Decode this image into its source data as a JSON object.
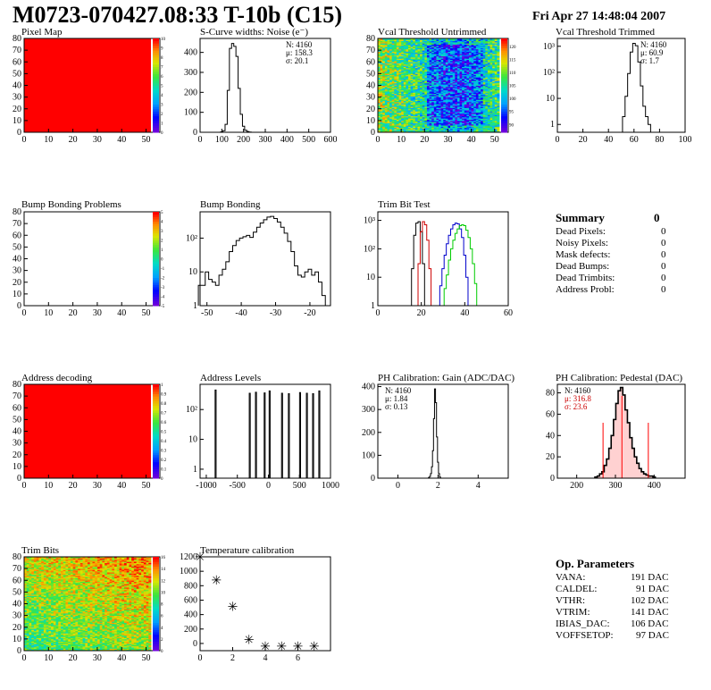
{
  "header": {
    "title": "M0723-070427.08:33 T-10b (C15)",
    "timestamp": "Fri Apr 27 14:48:04 2007"
  },
  "colors": {
    "ok": "#ff0000",
    "hist_line": "#000000",
    "trim_red": "#cc0000",
    "trim_blue": "#0000cc",
    "trim_green": "#00cc00",
    "pedestal_fill": "#ff0000"
  },
  "pads": {
    "pixel_map": {
      "title": "Pixel Map",
      "xticks": [
        "0",
        "10",
        "20",
        "30",
        "40",
        "50"
      ],
      "yticks": [
        "0",
        "10",
        "20",
        "30",
        "40",
        "50",
        "60",
        "70",
        "80"
      ],
      "zticks": [
        "0",
        "1",
        "2",
        "3",
        "4",
        "5",
        "6",
        "7",
        "8",
        "9",
        "10"
      ]
    },
    "scurve": {
      "title": "S-Curve widths: Noise (e⁻)",
      "stats": [
        "N: 4160",
        "μ: 158.3",
        "σ: 20.1"
      ],
      "xticks": [
        "0",
        "100",
        "200",
        "300",
        "400",
        "500",
        "600"
      ],
      "yticks": [
        "0",
        "100",
        "200",
        "300",
        "400"
      ]
    },
    "vcal_untrimmed": {
      "title": "Vcal Threshold Untrimmed",
      "xticks": [
        "0",
        "10",
        "20",
        "30",
        "40",
        "50"
      ],
      "yticks": [
        "0",
        "10",
        "20",
        "30",
        "40",
        "50",
        "60",
        "70",
        "80"
      ],
      "zticks": [
        "90",
        "95",
        "100",
        "105",
        "110",
        "115",
        "120"
      ]
    },
    "vcal_trimmed": {
      "title": "Vcal Threshold Trimmed",
      "stats": [
        "N: 4160",
        "μ: 60.9",
        "σ:  1.7"
      ],
      "xticks": [
        "0",
        "20",
        "40",
        "60",
        "80",
        "100"
      ],
      "yticks": [
        "1",
        "10",
        "10²",
        "10³"
      ]
    },
    "bump_problems": {
      "title": "Bump Bonding Problems",
      "xticks": [
        "0",
        "10",
        "20",
        "30",
        "40",
        "50"
      ],
      "yticks": [
        "0",
        "10",
        "20",
        "30",
        "40",
        "50",
        "60",
        "70",
        "80"
      ],
      "zticks": [
        "-5",
        "-4",
        "-3",
        "-2",
        "-1",
        "0",
        "1",
        "2",
        "3",
        "4",
        "5"
      ]
    },
    "bump_bonding": {
      "title": "Bump Bonding",
      "xticks": [
        "-50",
        "-40",
        "-30",
        "-20"
      ],
      "yticks": [
        "1",
        "10",
        "10²"
      ]
    },
    "trim_bit_test": {
      "title": "Trim Bit Test",
      "xticks": [
        "0",
        "20",
        "40",
        "60"
      ],
      "yticks": [
        "1",
        "10",
        "10²",
        "10³"
      ]
    },
    "address_decoding": {
      "title": "Address decoding",
      "xticks": [
        "0",
        "10",
        "20",
        "30",
        "40",
        "50"
      ],
      "yticks": [
        "0",
        "10",
        "20",
        "30",
        "40",
        "50",
        "60",
        "70",
        "80"
      ],
      "zticks": [
        "0",
        "0.1",
        "0.2",
        "0.3",
        "0.4",
        "0.5",
        "0.6",
        "0.7",
        "0.8",
        "0.9",
        "1"
      ]
    },
    "address_levels": {
      "title": "Address Levels",
      "xticks": [
        "-1000",
        "-500",
        "0",
        "500",
        "1000"
      ],
      "yticks": [
        "1",
        "10",
        "10²"
      ]
    },
    "ph_gain": {
      "title": "PH Calibration: Gain (ADC/DAC)",
      "stats": [
        "N: 4160",
        "μ: 1.84",
        "σ: 0.13"
      ],
      "xticks": [
        "0",
        "2",
        "4"
      ],
      "yticks": [
        "0",
        "100",
        "200",
        "300",
        "400"
      ]
    },
    "ph_pedestal": {
      "title": "PH Calibration: Pedestal (DAC)",
      "stats": [
        "N: 4160",
        "μ: 316.8",
        "σ: 23.6"
      ],
      "xticks": [
        "200",
        "300",
        "400"
      ],
      "yticks": [
        "0",
        "20",
        "40",
        "60",
        "80"
      ]
    },
    "trim_bits": {
      "title": "Trim Bits",
      "xticks": [
        "0",
        "10",
        "20",
        "30",
        "40",
        "50"
      ],
      "yticks": [
        "0",
        "10",
        "20",
        "30",
        "40",
        "50",
        "60",
        "70",
        "80"
      ],
      "zticks": [
        "0",
        "2",
        "4",
        "6",
        "8",
        "10",
        "12",
        "14",
        "16"
      ]
    },
    "temp_cal": {
      "title": "Temperature calibration",
      "xticks": [
        "0",
        "2",
        "4",
        "6"
      ],
      "yticks": [
        "0",
        "200",
        "400",
        "600",
        "800",
        "1000",
        "1200"
      ]
    }
  },
  "summary": {
    "title": "Summary",
    "total": "0",
    "rows": [
      {
        "label": "Dead Pixels:",
        "value": "0"
      },
      {
        "label": "Noisy Pixels:",
        "value": "0"
      },
      {
        "label": "Mask defects:",
        "value": "0"
      },
      {
        "label": "Dead Bumps:",
        "value": "0"
      },
      {
        "label": "Dead Trimbits:",
        "value": "0"
      },
      {
        "label": "Address Probl:",
        "value": "0"
      }
    ]
  },
  "op_parameters": {
    "title": "Op. Parameters",
    "rows": [
      {
        "label": "VANA:",
        "value": "191 DAC"
      },
      {
        "label": "CALDEL:",
        "value": "91 DAC"
      },
      {
        "label": "VTHR:",
        "value": "102 DAC"
      },
      {
        "label": "VTRIM:",
        "value": "141 DAC"
      },
      {
        "label": "IBIAS_DAC:",
        "value": "106 DAC"
      },
      {
        "label": "VOFFSETOP:",
        "value": "97 DAC"
      }
    ]
  },
  "chart_data": [
    {
      "type": "heatmap",
      "panel": "Pixel Map",
      "xlim": [
        0,
        52
      ],
      "ylim": [
        0,
        80
      ],
      "zlim": [
        0,
        10
      ],
      "uniform_value": 10
    },
    {
      "type": "bar",
      "panel": "S-Curve widths: Noise",
      "xlim": [
        0,
        600
      ],
      "ylim": [
        0,
        470
      ],
      "bins": [
        [
          100,
          2
        ],
        [
          110,
          8
        ],
        [
          120,
          40
        ],
        [
          130,
          210
        ],
        [
          140,
          420
        ],
        [
          150,
          445
        ],
        [
          160,
          430
        ],
        [
          170,
          380
        ],
        [
          180,
          220
        ],
        [
          190,
          90
        ],
        [
          200,
          30
        ],
        [
          210,
          10
        ],
        [
          220,
          4
        ],
        [
          230,
          1
        ]
      ]
    },
    {
      "type": "heatmap",
      "panel": "Vcal Threshold Untrimmed",
      "xlim": [
        0,
        52
      ],
      "ylim": [
        0,
        80
      ],
      "zlim": [
        87,
        123
      ]
    },
    {
      "type": "bar",
      "panel": "Vcal Threshold Trimmed",
      "log_y": true,
      "xlim": [
        0,
        100
      ],
      "ylim": [
        0.5,
        2000
      ],
      "bins": [
        [
          52,
          2
        ],
        [
          54,
          12
        ],
        [
          56,
          90
        ],
        [
          58,
          600
        ],
        [
          60,
          1300
        ],
        [
          62,
          1050
        ],
        [
          64,
          250
        ],
        [
          66,
          30
        ],
        [
          68,
          5
        ],
        [
          70,
          2
        ],
        [
          72,
          1
        ]
      ]
    },
    {
      "type": "heatmap",
      "panel": "Bump Bonding Problems",
      "xlim": [
        0,
        52
      ],
      "ylim": [
        0,
        80
      ],
      "zlim": [
        -5,
        5
      ],
      "empty": true
    },
    {
      "type": "bar",
      "panel": "Bump Bonding",
      "log_y": true,
      "xlim": [
        -52,
        -14
      ],
      "ylim": [
        1,
        600
      ],
      "bins": [
        [
          -52,
          4
        ],
        [
          -51,
          4
        ],
        [
          -50,
          10
        ],
        [
          -49,
          6
        ],
        [
          -48,
          5
        ],
        [
          -47,
          4
        ],
        [
          -46,
          8
        ],
        [
          -45,
          12
        ],
        [
          -44,
          20
        ],
        [
          -43,
          40
        ],
        [
          -42,
          60
        ],
        [
          -41,
          85
        ],
        [
          -40,
          100
        ],
        [
          -39,
          110
        ],
        [
          -38,
          120
        ],
        [
          -37,
          105
        ],
        [
          -36,
          150
        ],
        [
          -35,
          210
        ],
        [
          -34,
          280
        ],
        [
          -33,
          350
        ],
        [
          -32,
          420
        ],
        [
          -31,
          440
        ],
        [
          -30,
          380
        ],
        [
          -29,
          300
        ],
        [
          -28,
          210
        ],
        [
          -27,
          140
        ],
        [
          -26,
          80
        ],
        [
          -25,
          40
        ],
        [
          -24,
          15
        ],
        [
          -23,
          8
        ],
        [
          -22,
          7
        ],
        [
          -21,
          10
        ],
        [
          -20,
          12
        ],
        [
          -19,
          8
        ],
        [
          -18,
          10
        ],
        [
          -17,
          5
        ],
        [
          -16,
          2
        ]
      ]
    },
    {
      "type": "line",
      "panel": "Trim Bit Test",
      "log_y": true,
      "xlim": [
        0,
        60
      ],
      "ylim": [
        1,
        2000
      ],
      "series": [
        {
          "color": "#000000",
          "bins": [
            [
              15,
              1
            ],
            [
              16,
              20
            ],
            [
              17,
              300
            ],
            [
              18,
              800
            ],
            [
              19,
              900
            ],
            [
              20,
              400
            ],
            [
              21,
              30
            ],
            [
              22,
              1
            ]
          ]
        },
        {
          "color": "#cc0000",
          "bins": [
            [
              18,
              1
            ],
            [
              19,
              30
            ],
            [
              20,
              400
            ],
            [
              21,
              900
            ],
            [
              22,
              700
            ],
            [
              23,
              200
            ],
            [
              24,
              20
            ],
            [
              25,
              1
            ]
          ]
        },
        {
          "color": "#0000cc",
          "bins": [
            [
              28,
              1
            ],
            [
              29,
              5
            ],
            [
              30,
              20
            ],
            [
              31,
              60
            ],
            [
              32,
              150
            ],
            [
              33,
              300
            ],
            [
              34,
              500
            ],
            [
              35,
              700
            ],
            [
              36,
              800
            ],
            [
              37,
              750
            ],
            [
              38,
              500
            ],
            [
              39,
              250
            ],
            [
              40,
              60
            ],
            [
              41,
              10
            ],
            [
              42,
              1
            ]
          ]
        },
        {
          "color": "#00cc00",
          "bins": [
            [
              30,
              1
            ],
            [
              31,
              4
            ],
            [
              32,
              12
            ],
            [
              33,
              40
            ],
            [
              34,
              100
            ],
            [
              35,
              200
            ],
            [
              36,
              350
            ],
            [
              37,
              500
            ],
            [
              38,
              650
            ],
            [
              39,
              700
            ],
            [
              40,
              650
            ],
            [
              41,
              450
            ],
            [
              42,
              250
            ],
            [
              43,
              100
            ],
            [
              44,
              30
            ],
            [
              45,
              6
            ],
            [
              46,
              1
            ]
          ]
        }
      ]
    },
    {
      "type": "heatmap",
      "panel": "Address decoding",
      "xlim": [
        0,
        52
      ],
      "ylim": [
        0,
        80
      ],
      "zlim": [
        0,
        1
      ],
      "uniform_value": 1
    },
    {
      "type": "bar",
      "panel": "Address Levels",
      "log_y": true,
      "xlim": [
        -1100,
        1000
      ],
      "ylim": [
        0.5,
        700
      ],
      "peaks": [
        [
          -850,
          450
        ],
        [
          -300,
          350
        ],
        [
          -200,
          380
        ],
        [
          -60,
          360
        ],
        [
          20,
          420
        ],
        [
          220,
          350
        ],
        [
          330,
          340
        ],
        [
          510,
          370
        ],
        [
          620,
          350
        ],
        [
          720,
          340
        ],
        [
          820,
          420
        ]
      ]
    },
    {
      "type": "bar",
      "panel": "PH Calibration: Gain",
      "xlim": [
        -1,
        5.5
      ],
      "ylim": [
        0,
        410
      ],
      "bins": [
        [
          1.55,
          3
        ],
        [
          1.6,
          8
        ],
        [
          1.65,
          20
        ],
        [
          1.7,
          50
        ],
        [
          1.75,
          120
        ],
        [
          1.8,
          260
        ],
        [
          1.85,
          390
        ],
        [
          1.9,
          330
        ],
        [
          1.95,
          180
        ],
        [
          2.0,
          70
        ],
        [
          2.05,
          20
        ],
        [
          2.1,
          5
        ]
      ]
    },
    {
      "type": "bar",
      "panel": "PH Calibration: Pedestal",
      "xlim": [
        150,
        480
      ],
      "ylim": [
        0,
        88
      ],
      "fit_lines": [
        268,
        316.8,
        385
      ],
      "bins": [
        [
          250,
          1
        ],
        [
          256,
          2
        ],
        [
          262,
          4
        ],
        [
          268,
          6
        ],
        [
          274,
          12
        ],
        [
          280,
          18
        ],
        [
          286,
          28
        ],
        [
          292,
          40
        ],
        [
          298,
          55
        ],
        [
          304,
          70
        ],
        [
          310,
          82
        ],
        [
          316,
          85
        ],
        [
          322,
          78
        ],
        [
          328,
          64
        ],
        [
          334,
          52
        ],
        [
          340,
          38
        ],
        [
          346,
          28
        ],
        [
          352,
          20
        ],
        [
          358,
          14
        ],
        [
          364,
          9
        ],
        [
          370,
          6
        ],
        [
          376,
          4
        ],
        [
          382,
          3
        ],
        [
          388,
          2
        ],
        [
          394,
          2
        ],
        [
          400,
          1
        ]
      ]
    },
    {
      "type": "heatmap",
      "panel": "Trim Bits",
      "xlim": [
        0,
        52
      ],
      "ylim": [
        0,
        80
      ],
      "zlim": [
        0,
        16
      ]
    },
    {
      "type": "scatter",
      "panel": "Temperature calibration",
      "xlim": [
        0,
        8
      ],
      "ylim": [
        -100,
        1200
      ],
      "x": [
        0,
        1,
        2,
        3,
        4,
        5,
        6,
        7
      ],
      "y": [
        1200,
        880,
        510,
        55,
        -40,
        -40,
        -40,
        -40
      ]
    }
  ]
}
